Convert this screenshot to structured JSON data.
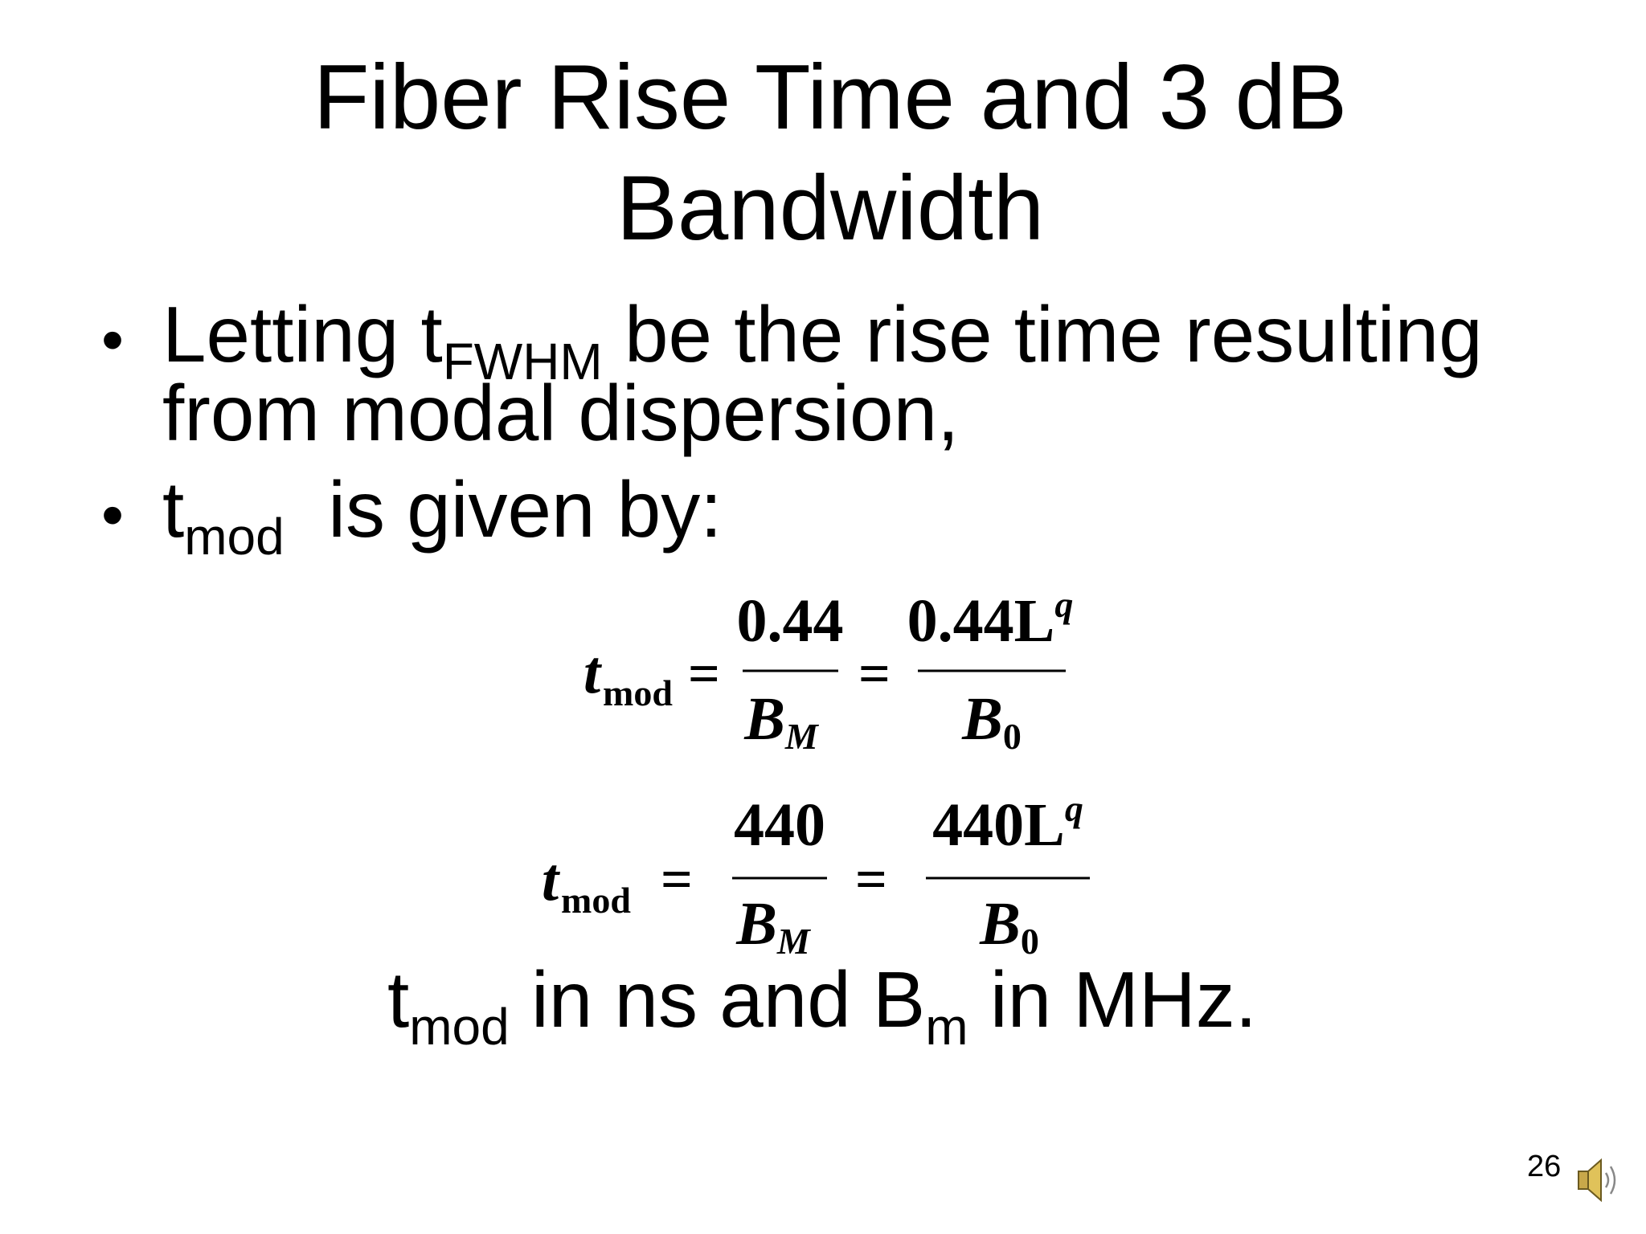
{
  "title_lines": [
    "Fiber Rise Time and 3 dB",
    "Bandwidth"
  ],
  "bullets": [
    {
      "lines": [
        {
          "text": "Letting t",
          "sub": "FWHM",
          "after": " be the rise time resulting"
        },
        {
          "text": "from modal dispersion,"
        }
      ]
    },
    {
      "lines": [
        {
          "text": "t",
          "sub": "mod",
          "after": "  is given by:"
        }
      ]
    }
  ],
  "equations": [
    {
      "lhs": "t",
      "lhs_sub": "mod",
      "equals": "=",
      "fractions": [
        {
          "numerator": "0.44",
          "denominator": "B",
          "denominator_sub": "M"
        },
        {
          "numerator": "0.44L",
          "numerator_sup": "q",
          "denominator": "B",
          "denominator_sub": "0"
        }
      ]
    },
    {
      "lhs": "t",
      "lhs_sub": "mod",
      "equals": "=",
      "fractions": [
        {
          "numerator": "440",
          "denominator": "B",
          "denominator_sub": "M"
        },
        {
          "numerator": "440L",
          "numerator_sup": "q",
          "denominator": "B",
          "denominator_sub": "0"
        }
      ]
    }
  ],
  "units_note": {
    "t": "t",
    "t_sub": "mod",
    "middle": " in ns and B",
    "m_sub": "m",
    "end": " in MHz."
  },
  "page_number": "26"
}
